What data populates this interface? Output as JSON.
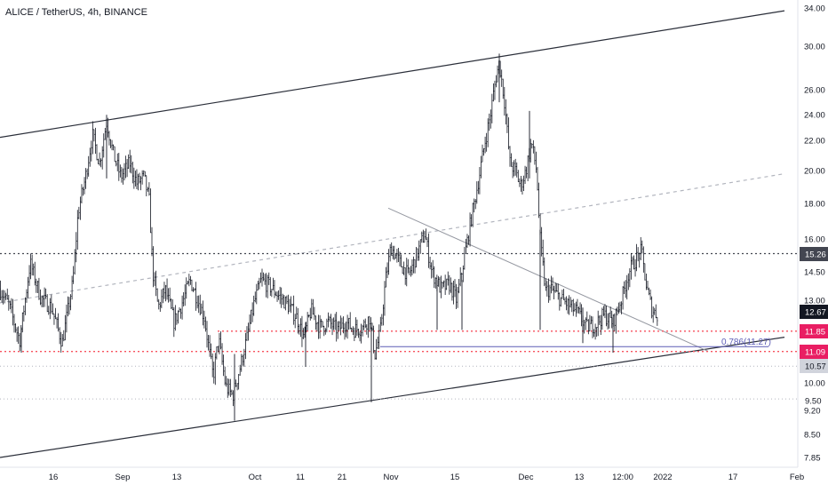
{
  "header": {
    "symbol": "ALICE / TetherUS, 4h, BINANCE"
  },
  "chart_data": {
    "type": "candlestick",
    "title": "ALICE / TetherUS, 4h, BINANCE",
    "y_axis": {
      "scale": "log",
      "range": [
        7.6,
        34.5
      ],
      "ticks": [
        "34.00",
        "30.00",
        "26.00",
        "24.00",
        "22.00",
        "20.00",
        "18.00",
        "16.00",
        "14.50",
        "13.00",
        "10.00",
        "9.20",
        "8.50",
        "7.85"
      ]
    },
    "x_axis": {
      "ticks": [
        "16",
        "Sep",
        "13",
        "Oct",
        "11",
        "21",
        "Nov",
        "15",
        "Dec",
        "13",
        "12:00",
        "2022",
        "17",
        "Feb"
      ]
    },
    "price_labels": [
      {
        "value": "15.26",
        "style": "dark"
      },
      {
        "value": "12.67",
        "style": "black"
      },
      {
        "value": "11.85",
        "style": "red"
      },
      {
        "value": "11.09",
        "style": "red"
      },
      {
        "value": "10.57",
        "style": "gray"
      },
      {
        "value": "9.50",
        "style": "light"
      }
    ],
    "fib_label": "0.786(11.27)",
    "price_path": [
      [
        0,
        13.6
      ],
      [
        10,
        12.9
      ],
      [
        22,
        11.5
      ],
      [
        34,
        14.8
      ],
      [
        46,
        13.2
      ],
      [
        58,
        12.8
      ],
      [
        70,
        11.4
      ],
      [
        82,
        13.9
      ],
      [
        88,
        17.5
      ],
      [
        96,
        19.5
      ],
      [
        104,
        22.5
      ],
      [
        112,
        20.5
      ],
      [
        120,
        23.5
      ],
      [
        128,
        21.0
      ],
      [
        136,
        19.6
      ],
      [
        146,
        20.5
      ],
      [
        154,
        19.2
      ],
      [
        162,
        19.6
      ],
      [
        168,
        18.1
      ],
      [
        172,
        14.4
      ],
      [
        178,
        12.8
      ],
      [
        186,
        13.6
      ],
      [
        196,
        12.2
      ],
      [
        206,
        13.1
      ],
      [
        214,
        14.0
      ],
      [
        222,
        13.2
      ],
      [
        230,
        12.4
      ],
      [
        236,
        11.0
      ],
      [
        240,
        10.2
      ],
      [
        246,
        11.6
      ],
      [
        254,
        9.9
      ],
      [
        262,
        9.6
      ],
      [
        270,
        10.5
      ],
      [
        278,
        11.6
      ],
      [
        286,
        13.0
      ],
      [
        294,
        14.0
      ],
      [
        304,
        13.7
      ],
      [
        314,
        13.3
      ],
      [
        324,
        12.9
      ],
      [
        334,
        12.4
      ],
      [
        342,
        11.6
      ],
      [
        350,
        12.7
      ],
      [
        360,
        12.0
      ],
      [
        370,
        12.2
      ],
      [
        380,
        11.9
      ],
      [
        390,
        12.2
      ],
      [
        398,
        11.9
      ],
      [
        408,
        12.0
      ],
      [
        416,
        12.4
      ],
      [
        422,
        11.0
      ],
      [
        428,
        11.8
      ],
      [
        434,
        14.0
      ],
      [
        440,
        15.6
      ],
      [
        450,
        14.8
      ],
      [
        460,
        14.2
      ],
      [
        470,
        15.3
      ],
      [
        478,
        16.3
      ],
      [
        486,
        14.4
      ],
      [
        496,
        13.6
      ],
      [
        506,
        13.8
      ],
      [
        514,
        13.1
      ],
      [
        522,
        14.9
      ],
      [
        530,
        17.0
      ],
      [
        538,
        19.2
      ],
      [
        546,
        22.0
      ],
      [
        552,
        24.0
      ],
      [
        558,
        27.0
      ],
      [
        562,
        28.5
      ],
      [
        568,
        25.0
      ],
      [
        574,
        20.5
      ],
      [
        580,
        20.0
      ],
      [
        586,
        19.0
      ],
      [
        592,
        20.0
      ],
      [
        598,
        22.0
      ],
      [
        604,
        20.0
      ],
      [
        608,
        16.0
      ],
      [
        614,
        13.5
      ],
      [
        620,
        13.6
      ],
      [
        630,
        13.2
      ],
      [
        640,
        12.9
      ],
      [
        650,
        12.6
      ],
      [
        660,
        12.0
      ],
      [
        670,
        12.1
      ],
      [
        680,
        12.5
      ],
      [
        690,
        12.2
      ],
      [
        700,
        13.2
      ],
      [
        708,
        14.4
      ],
      [
        716,
        15.0
      ],
      [
        722,
        15.4
      ],
      [
        728,
        13.6
      ],
      [
        734,
        12.7
      ],
      [
        740,
        12.5
      ]
    ],
    "drawings": [
      {
        "name": "channel-upper",
        "from": [
          0,
          22.3
        ],
        "to": [
          883,
          33.7
        ],
        "style": "solid"
      },
      {
        "name": "channel-lower",
        "from": [
          0,
          7.85
        ],
        "to": [
          883,
          11.62
        ],
        "style": "solid"
      },
      {
        "name": "channel-mid",
        "from": [
          0,
          13.0
        ],
        "to": [
          883,
          19.8
        ],
        "style": "dashed"
      },
      {
        "name": "trendline-descending",
        "from": [
          437,
          17.7
        ],
        "to": [
          797,
          11.1
        ],
        "style": "solid"
      }
    ],
    "levels": [
      {
        "name": "level-15-26",
        "value": 15.26,
        "style": "dotted-dark"
      },
      {
        "name": "level-11-85",
        "value": 11.85,
        "style": "dotted-red"
      },
      {
        "name": "level-11-09",
        "value": 11.09,
        "style": "dotted-red"
      },
      {
        "name": "level-fib-0786",
        "value": 11.27,
        "style": "solid-blue"
      },
      {
        "name": "level-10-57",
        "value": 10.57,
        "style": "dotted-gray"
      },
      {
        "name": "level-9-50",
        "value": 9.5,
        "style": "dotted-gray"
      }
    ],
    "colors": {
      "candle": "#131722",
      "channel": "#2a2e39",
      "mid_dashed": "#b2b5be",
      "trendline": "#9598a1",
      "level_dark": "#434651",
      "level_red": "#f7525f",
      "label_red": "#e91e63",
      "fib_blue": "#5b5bb5",
      "label_dark": "#434651",
      "label_black": "#131722",
      "label_gray": "#d1d4dc",
      "axis_text": "#131722"
    }
  }
}
